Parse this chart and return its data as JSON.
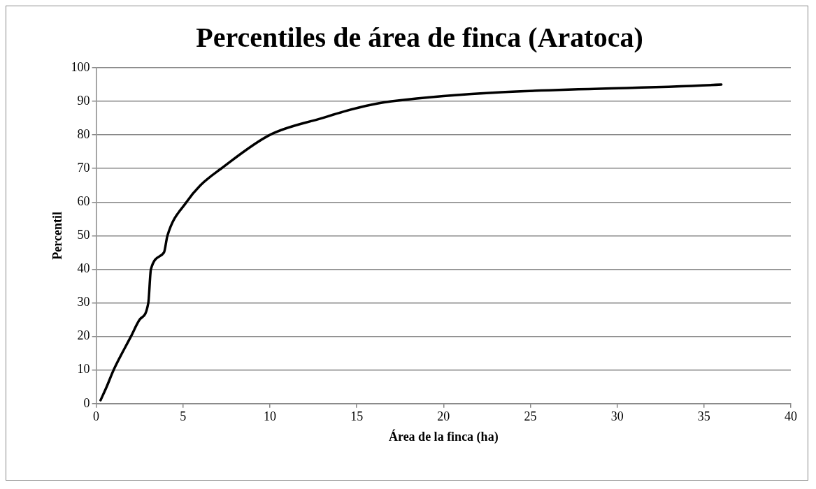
{
  "chart_data": {
    "type": "line",
    "title": "Percentiles de área de finca (Aratoca)",
    "xlabel": "Área de la finca (ha)",
    "ylabel": "Percentil",
    "series": [
      {
        "color": "#000000",
        "x": [
          0.25,
          0.6,
          1,
          2,
          2.5,
          3,
          3.15,
          3.9,
          4.1,
          5.2,
          6,
          7.2,
          10,
          13,
          15,
          17,
          36
        ],
        "values": [
          1,
          5,
          10,
          20,
          25,
          30,
          40,
          45,
          50,
          60,
          65,
          70,
          80,
          85,
          88,
          90,
          95
        ]
      }
    ],
    "xlim": [
      0,
      40
    ],
    "xticks": [
      0,
      5,
      10,
      15,
      20,
      25,
      30,
      35,
      40
    ],
    "ylim": [
      0,
      100
    ],
    "yticks": [
      0,
      10,
      20,
      30,
      40,
      50,
      60,
      70,
      80,
      90,
      100
    ],
    "grid": "y",
    "legend": false,
    "marker": "none",
    "line_style": "solid"
  }
}
